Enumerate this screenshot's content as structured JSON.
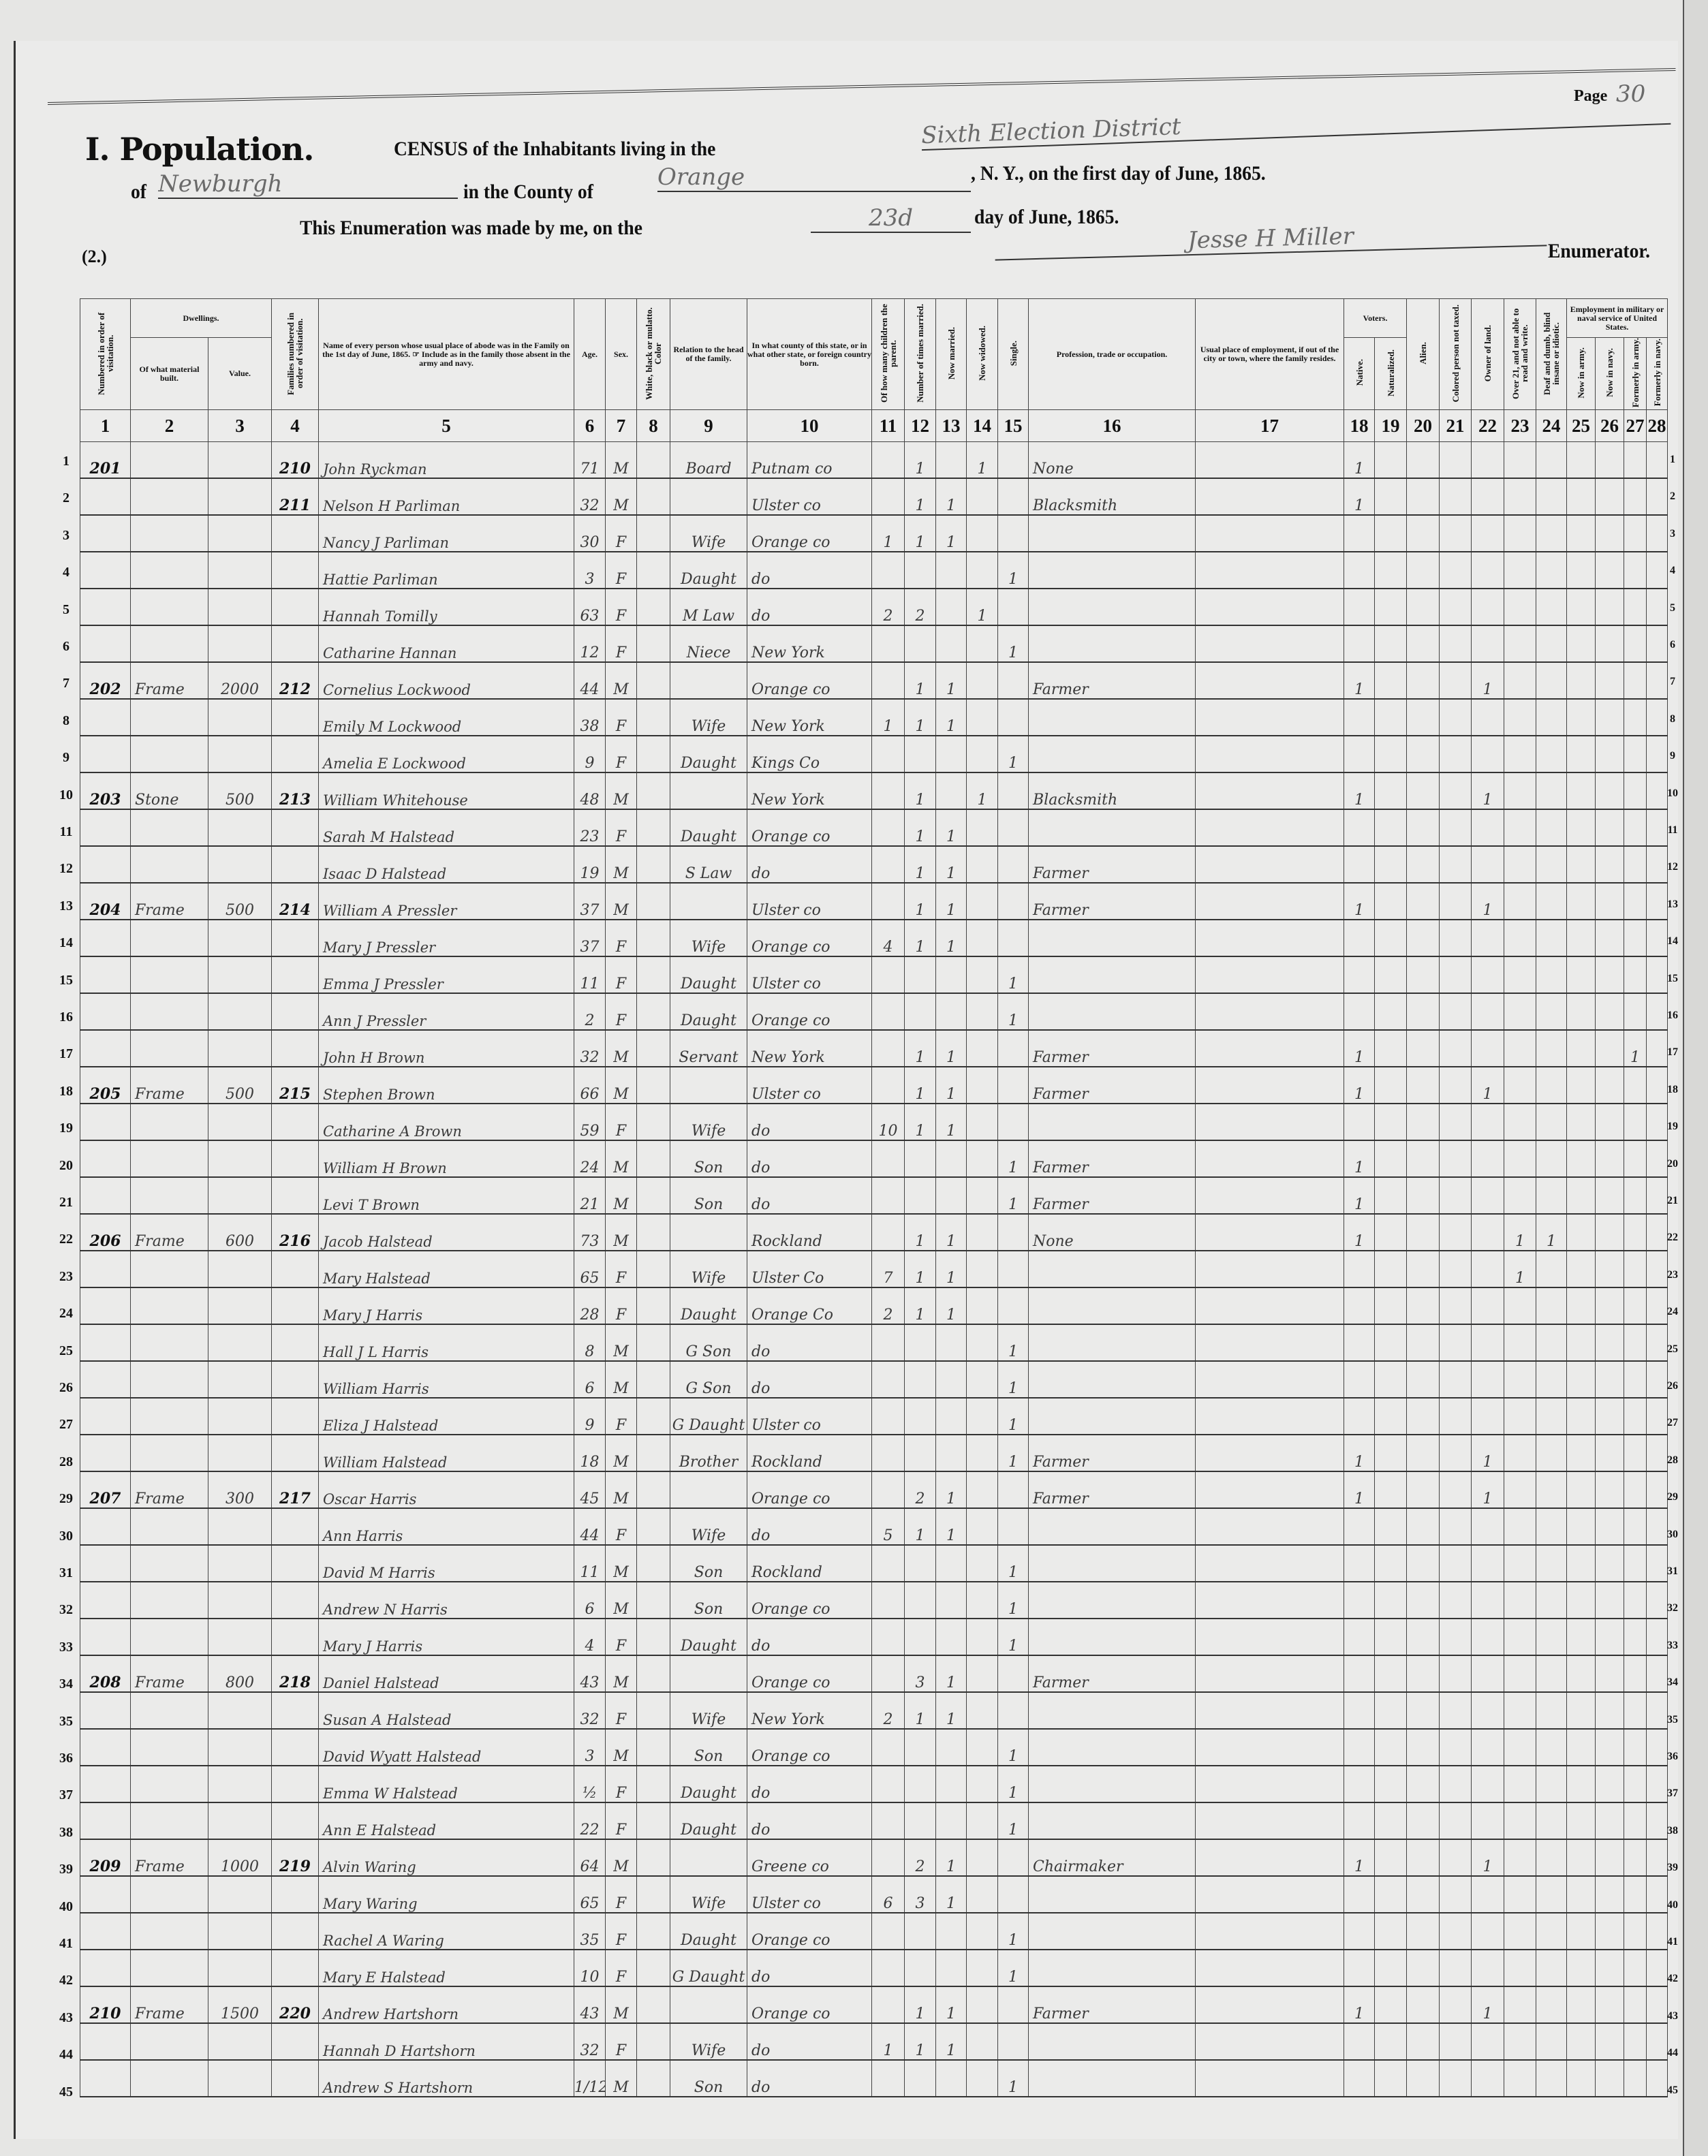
{
  "header": {
    "page_label": "Page",
    "page_number": "30",
    "title": "I. Population.",
    "census_text": "CENSUS of the Inhabitants living in the",
    "district": "Sixth Election District",
    "of_label": "of",
    "town": "Newburgh",
    "county_label": "in the County of",
    "county": "Orange",
    "state_date_text": ", N. Y., on the first day of June, 1865.",
    "enumeration_text": "This Enumeration was made by me, on the",
    "enumeration_day": "23d",
    "month_text": "day of June, 1865.",
    "enumerator": "Jesse H Miller",
    "enumerator_label": "Enumerator.",
    "schedule_number": "(2.)"
  },
  "groups": {
    "dwellings": "Dwellings.",
    "voters": "Voters.",
    "employment": "Employment in military or naval service of United States."
  },
  "columns": [
    "Numbered in order of visitation.",
    "Of what material built.",
    "Value.",
    "Families numbered in order of visitation.",
    "Name of every person whose usual place of abode was in the Family on the 1st day of June, 1865. ☞ Include as in the family those absent in the army and navy.",
    "Age.",
    "Sex.",
    "White, black or mulatto. Color",
    "Relation to the head of the family.",
    "In what county of this state, or in what other state, or foreign country born.",
    "Of how many children the parent.",
    "Number of times married.",
    "Now married.",
    "Now widowed.",
    "Single.",
    "Profession, trade or occupation.",
    "Usual place of employment, if out of the city or town, where the family resides.",
    "Native.",
    "Naturalized.",
    "Alien.",
    "Colored person not taxed.",
    "Owner of land.",
    "Over 21, and not able to read and write.",
    "Deaf and dumb, blind insane or idiotic.",
    "Now in army.",
    "Now in navy.",
    "Formerly in army.",
    "Formerly in navy."
  ],
  "column_numbers": [
    "1",
    "2",
    "3",
    "4",
    "5",
    "6",
    "7",
    "8",
    "9",
    "10",
    "11",
    "12",
    "13",
    "14",
    "15",
    "16",
    "17",
    "18",
    "19",
    "20",
    "21",
    "22",
    "23",
    "24",
    "25",
    "26",
    "27",
    "28"
  ],
  "row_numbers": [
    "1",
    "2",
    "3",
    "4",
    "5",
    "6",
    "7",
    "8",
    "9",
    "10",
    "11",
    "12",
    "13",
    "14",
    "15",
    "16",
    "17",
    "18",
    "19",
    "20",
    "21",
    "22",
    "23",
    "24",
    "25",
    "26",
    "27",
    "28",
    "29",
    "30",
    "31",
    "32",
    "33",
    "34",
    "35",
    "36",
    "37",
    "38",
    "39",
    "40",
    "41",
    "42",
    "43",
    "44",
    "45"
  ],
  "rows": [
    [
      "201",
      "",
      "",
      "210",
      "John Ryckman",
      "71",
      "M",
      "",
      "Board",
      "Putnam co",
      "",
      "1",
      "",
      "1",
      "",
      "None",
      "",
      "1",
      "",
      "",
      "",
      "",
      "",
      "",
      "",
      "",
      "",
      ""
    ],
    [
      "",
      "",
      "",
      "211",
      "Nelson H Parliman",
      "32",
      "M",
      "",
      "",
      "Ulster co",
      "",
      "1",
      "1",
      "",
      "",
      "Blacksmith",
      "",
      "1",
      "",
      "",
      "",
      "",
      "",
      "",
      "",
      "",
      "",
      ""
    ],
    [
      "",
      "",
      "",
      "",
      "Nancy J Parliman",
      "30",
      "F",
      "",
      "Wife",
      "Orange co",
      "1",
      "1",
      "1",
      "",
      "",
      "",
      "",
      "",
      "",
      "",
      "",
      "",
      "",
      "",
      "",
      "",
      "",
      ""
    ],
    [
      "",
      "",
      "",
      "",
      "Hattie Parliman",
      "3",
      "F",
      "",
      "Daught",
      "do",
      "",
      "",
      "",
      "",
      "1",
      "",
      "",
      "",
      "",
      "",
      "",
      "",
      "",
      "",
      "",
      "",
      "",
      ""
    ],
    [
      "",
      "",
      "",
      "",
      "Hannah Tomilly",
      "63",
      "F",
      "",
      "M Law",
      "do",
      "2",
      "2",
      "",
      "1",
      "",
      "",
      "",
      "",
      "",
      "",
      "",
      "",
      "",
      "",
      "",
      "",
      "",
      ""
    ],
    [
      "",
      "",
      "",
      "",
      "Catharine Hannan",
      "12",
      "F",
      "",
      "Niece",
      "New York",
      "",
      "",
      "",
      "",
      "1",
      "",
      "",
      "",
      "",
      "",
      "",
      "",
      "",
      "",
      "",
      "",
      "",
      ""
    ],
    [
      "202",
      "Frame",
      "2000",
      "212",
      "Cornelius Lockwood",
      "44",
      "M",
      "",
      "",
      "Orange co",
      "",
      "1",
      "1",
      "",
      "",
      "Farmer",
      "",
      "1",
      "",
      "",
      "",
      "1",
      "",
      "",
      "",
      "",
      "",
      ""
    ],
    [
      "",
      "",
      "",
      "",
      "Emily M Lockwood",
      "38",
      "F",
      "",
      "Wife",
      "New York",
      "1",
      "1",
      "1",
      "",
      "",
      "",
      "",
      "",
      "",
      "",
      "",
      "",
      "",
      "",
      "",
      "",
      "",
      ""
    ],
    [
      "",
      "",
      "",
      "",
      "Amelia E Lockwood",
      "9",
      "F",
      "",
      "Daught",
      "Kings Co",
      "",
      "",
      "",
      "",
      "1",
      "",
      "",
      "",
      "",
      "",
      "",
      "",
      "",
      "",
      "",
      "",
      "",
      ""
    ],
    [
      "203",
      "Stone",
      "500",
      "213",
      "William Whitehouse",
      "48",
      "M",
      "",
      "",
      "New York",
      "",
      "1",
      "",
      "1",
      "",
      "Blacksmith",
      "",
      "1",
      "",
      "",
      "",
      "1",
      "",
      "",
      "",
      "",
      "",
      ""
    ],
    [
      "",
      "",
      "",
      "",
      "Sarah M Halstead",
      "23",
      "F",
      "",
      "Daught",
      "Orange co",
      "",
      "1",
      "1",
      "",
      "",
      "",
      "",
      "",
      "",
      "",
      "",
      "",
      "",
      "",
      "",
      "",
      "",
      ""
    ],
    [
      "",
      "",
      "",
      "",
      "Isaac D Halstead",
      "19",
      "M",
      "",
      "S Law",
      "do",
      "",
      "1",
      "1",
      "",
      "",
      "Farmer",
      "",
      "",
      "",
      "",
      "",
      "",
      "",
      "",
      "",
      "",
      "",
      ""
    ],
    [
      "204",
      "Frame",
      "500",
      "214",
      "William A Pressler",
      "37",
      "M",
      "",
      "",
      "Ulster co",
      "",
      "1",
      "1",
      "",
      "",
      "Farmer",
      "",
      "1",
      "",
      "",
      "",
      "1",
      "",
      "",
      "",
      "",
      "",
      ""
    ],
    [
      "",
      "",
      "",
      "",
      "Mary J Pressler",
      "37",
      "F",
      "",
      "Wife",
      "Orange co",
      "4",
      "1",
      "1",
      "",
      "",
      "",
      "",
      "",
      "",
      "",
      "",
      "",
      "",
      "",
      "",
      "",
      "",
      ""
    ],
    [
      "",
      "",
      "",
      "",
      "Emma J Pressler",
      "11",
      "F",
      "",
      "Daught",
      "Ulster co",
      "",
      "",
      "",
      "",
      "1",
      "",
      "",
      "",
      "",
      "",
      "",
      "",
      "",
      "",
      "",
      "",
      "",
      ""
    ],
    [
      "",
      "",
      "",
      "",
      "Ann J Pressler",
      "2",
      "F",
      "",
      "Daught",
      "Orange co",
      "",
      "",
      "",
      "",
      "1",
      "",
      "",
      "",
      "",
      "",
      "",
      "",
      "",
      "",
      "",
      "",
      "",
      ""
    ],
    [
      "",
      "",
      "",
      "",
      "John H Brown",
      "32",
      "M",
      "",
      "Servant",
      "New York",
      "",
      "1",
      "1",
      "",
      "",
      "Farmer",
      "",
      "1",
      "",
      "",
      "",
      "",
      "",
      "",
      "",
      "",
      "1",
      ""
    ],
    [
      "205",
      "Frame",
      "500",
      "215",
      "Stephen Brown",
      "66",
      "M",
      "",
      "",
      "Ulster co",
      "",
      "1",
      "1",
      "",
      "",
      "Farmer",
      "",
      "1",
      "",
      "",
      "",
      "1",
      "",
      "",
      "",
      "",
      "",
      ""
    ],
    [
      "",
      "",
      "",
      "",
      "Catharine A Brown",
      "59",
      "F",
      "",
      "Wife",
      "do",
      "10",
      "1",
      "1",
      "",
      "",
      "",
      "",
      "",
      "",
      "",
      "",
      "",
      "",
      "",
      "",
      "",
      "",
      ""
    ],
    [
      "",
      "",
      "",
      "",
      "William H Brown",
      "24",
      "M",
      "",
      "Son",
      "do",
      "",
      "",
      "",
      "",
      "1",
      "Farmer",
      "",
      "1",
      "",
      "",
      "",
      "",
      "",
      "",
      "",
      "",
      "",
      ""
    ],
    [
      "",
      "",
      "",
      "",
      "Levi T Brown",
      "21",
      "M",
      "",
      "Son",
      "do",
      "",
      "",
      "",
      "",
      "1",
      "Farmer",
      "",
      "1",
      "",
      "",
      "",
      "",
      "",
      "",
      "",
      "",
      "",
      ""
    ],
    [
      "206",
      "Frame",
      "600",
      "216",
      "Jacob Halstead",
      "73",
      "M",
      "",
      "",
      "Rockland",
      "",
      "1",
      "1",
      "",
      "",
      "None",
      "",
      "1",
      "",
      "",
      "",
      "",
      "1",
      "1",
      "",
      "",
      "",
      ""
    ],
    [
      "",
      "",
      "",
      "",
      "Mary Halstead",
      "65",
      "F",
      "",
      "Wife",
      "Ulster Co",
      "7",
      "1",
      "1",
      "",
      "",
      "",
      "",
      "",
      "",
      "",
      "",
      "",
      "1",
      "",
      "",
      "",
      "",
      ""
    ],
    [
      "",
      "",
      "",
      "",
      "Mary J Harris",
      "28",
      "F",
      "",
      "Daught",
      "Orange Co",
      "2",
      "1",
      "1",
      "",
      "",
      "",
      "",
      "",
      "",
      "",
      "",
      "",
      "",
      "",
      "",
      "",
      "",
      ""
    ],
    [
      "",
      "",
      "",
      "",
      "Hall J L Harris",
      "8",
      "M",
      "",
      "G Son",
      "do",
      "",
      "",
      "",
      "",
      "1",
      "",
      "",
      "",
      "",
      "",
      "",
      "",
      "",
      "",
      "",
      "",
      "",
      ""
    ],
    [
      "",
      "",
      "",
      "",
      "William Harris",
      "6",
      "M",
      "",
      "G Son",
      "do",
      "",
      "",
      "",
      "",
      "1",
      "",
      "",
      "",
      "",
      "",
      "",
      "",
      "",
      "",
      "",
      "",
      "",
      ""
    ],
    [
      "",
      "",
      "",
      "",
      "Eliza J Halstead",
      "9",
      "F",
      "",
      "G Daught",
      "Ulster co",
      "",
      "",
      "",
      "",
      "1",
      "",
      "",
      "",
      "",
      "",
      "",
      "",
      "",
      "",
      "",
      "",
      "",
      ""
    ],
    [
      "",
      "",
      "",
      "",
      "William Halstead",
      "18",
      "M",
      "",
      "Brother",
      "Rockland",
      "",
      "",
      "",
      "",
      "1",
      "Farmer",
      "",
      "1",
      "",
      "",
      "",
      "1",
      "",
      "",
      "",
      "",
      "",
      ""
    ],
    [
      "207",
      "Frame",
      "300",
      "217",
      "Oscar Harris",
      "45",
      "M",
      "",
      "",
      "Orange co",
      "",
      "2",
      "1",
      "",
      "",
      "Farmer",
      "",
      "1",
      "",
      "",
      "",
      "1",
      "",
      "",
      "",
      "",
      "",
      ""
    ],
    [
      "",
      "",
      "",
      "",
      "Ann Harris",
      "44",
      "F",
      "",
      "Wife",
      "do",
      "5",
      "1",
      "1",
      "",
      "",
      "",
      "",
      "",
      "",
      "",
      "",
      "",
      "",
      "",
      "",
      "",
      "",
      ""
    ],
    [
      "",
      "",
      "",
      "",
      "David M Harris",
      "11",
      "M",
      "",
      "Son",
      "Rockland",
      "",
      "",
      "",
      "",
      "1",
      "",
      "",
      "",
      "",
      "",
      "",
      "",
      "",
      "",
      "",
      "",
      "",
      ""
    ],
    [
      "",
      "",
      "",
      "",
      "Andrew N Harris",
      "6",
      "M",
      "",
      "Son",
      "Orange co",
      "",
      "",
      "",
      "",
      "1",
      "",
      "",
      "",
      "",
      "",
      "",
      "",
      "",
      "",
      "",
      "",
      "",
      ""
    ],
    [
      "",
      "",
      "",
      "",
      "Mary J Harris",
      "4",
      "F",
      "",
      "Daught",
      "do",
      "",
      "",
      "",
      "",
      "1",
      "",
      "",
      "",
      "",
      "",
      "",
      "",
      "",
      "",
      "",
      "",
      "",
      ""
    ],
    [
      "208",
      "Frame",
      "800",
      "218",
      "Daniel Halstead",
      "43",
      "M",
      "",
      "",
      "Orange co",
      "",
      "3",
      "1",
      "",
      "",
      "Farmer",
      "",
      "",
      "",
      "",
      "",
      "",
      "",
      "",
      "",
      "",
      "",
      ""
    ],
    [
      "",
      "",
      "",
      "",
      "Susan A Halstead",
      "32",
      "F",
      "",
      "Wife",
      "New York",
      "2",
      "1",
      "1",
      "",
      "",
      "",
      "",
      "",
      "",
      "",
      "",
      "",
      "",
      "",
      "",
      "",
      "",
      ""
    ],
    [
      "",
      "",
      "",
      "",
      "David Wyatt Halstead",
      "3",
      "M",
      "",
      "Son",
      "Orange co",
      "",
      "",
      "",
      "",
      "1",
      "",
      "",
      "",
      "",
      "",
      "",
      "",
      "",
      "",
      "",
      "",
      "",
      ""
    ],
    [
      "",
      "",
      "",
      "",
      "Emma W Halstead",
      "½",
      "F",
      "",
      "Daught",
      "do",
      "",
      "",
      "",
      "",
      "1",
      "",
      "",
      "",
      "",
      "",
      "",
      "",
      "",
      "",
      "",
      "",
      "",
      ""
    ],
    [
      "",
      "",
      "",
      "",
      "Ann E Halstead",
      "22",
      "F",
      "",
      "Daught",
      "do",
      "",
      "",
      "",
      "",
      "1",
      "",
      "",
      "",
      "",
      "",
      "",
      "",
      "",
      "",
      "",
      "",
      "",
      ""
    ],
    [
      "209",
      "Frame",
      "1000",
      "219",
      "Alvin Waring",
      "64",
      "M",
      "",
      "",
      "Greene co",
      "",
      "2",
      "1",
      "",
      "",
      "Chairmaker",
      "",
      "1",
      "",
      "",
      "",
      "1",
      "",
      "",
      "",
      "",
      "",
      ""
    ],
    [
      "",
      "",
      "",
      "",
      "Mary Waring",
      "65",
      "F",
      "",
      "Wife",
      "Ulster co",
      "6",
      "3",
      "1",
      "",
      "",
      "",
      "",
      "",
      "",
      "",
      "",
      "",
      "",
      "",
      "",
      "",
      "",
      ""
    ],
    [
      "",
      "",
      "",
      "",
      "Rachel A Waring",
      "35",
      "F",
      "",
      "Daught",
      "Orange co",
      "",
      "",
      "",
      "",
      "1",
      "",
      "",
      "",
      "",
      "",
      "",
      "",
      "",
      "",
      "",
      "",
      "",
      ""
    ],
    [
      "",
      "",
      "",
      "",
      "Mary E Halstead",
      "10",
      "F",
      "",
      "G Daught",
      "do",
      "",
      "",
      "",
      "",
      "1",
      "",
      "",
      "",
      "",
      "",
      "",
      "",
      "",
      "",
      "",
      "",
      "",
      ""
    ],
    [
      "210",
      "Frame",
      "1500",
      "220",
      "Andrew Hartshorn",
      "43",
      "M",
      "",
      "",
      "Orange co",
      "",
      "1",
      "1",
      "",
      "",
      "Farmer",
      "",
      "1",
      "",
      "",
      "",
      "1",
      "",
      "",
      "",
      "",
      "",
      ""
    ],
    [
      "",
      "",
      "",
      "",
      "Hannah D Hartshorn",
      "32",
      "F",
      "",
      "Wife",
      "do",
      "1",
      "1",
      "1",
      "",
      "",
      "",
      "",
      "",
      "",
      "",
      "",
      "",
      "",
      "",
      "",
      "",
      "",
      ""
    ],
    [
      "",
      "",
      "",
      "",
      "Andrew S Hartshorn",
      "1/12",
      "M",
      "",
      "Son",
      "do",
      "",
      "",
      "",
      "",
      "1",
      "",
      "",
      "",
      "",
      "",
      "",
      "",
      "",
      "",
      "",
      "",
      "",
      ""
    ]
  ]
}
